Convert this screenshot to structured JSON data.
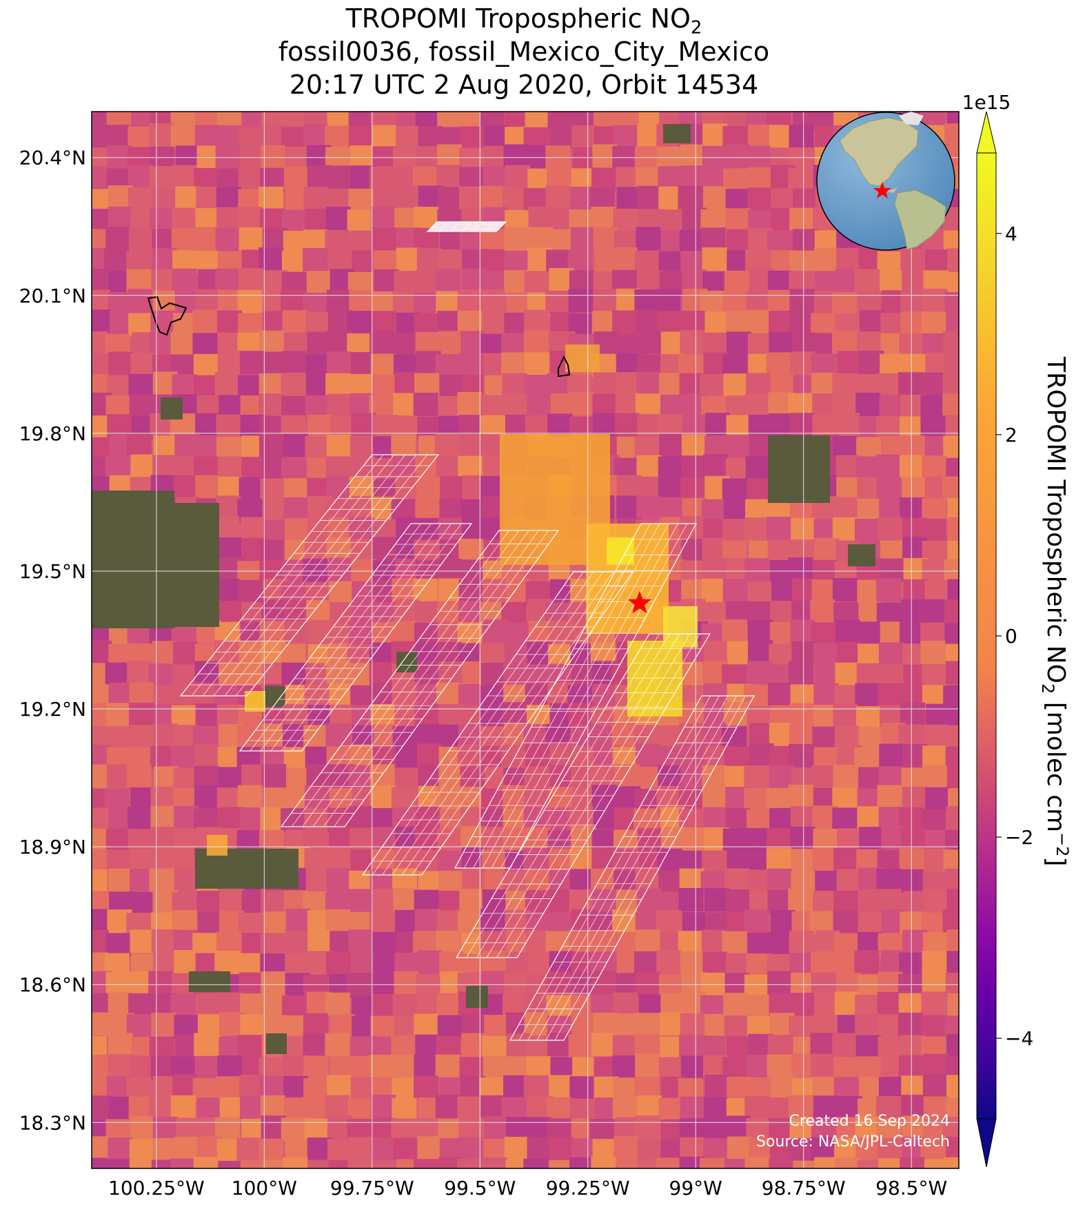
{
  "title": {
    "line1_prefix": "TROPOMI Tropospheric NO",
    "line1_sub": "2",
    "line2": "fossil0036, fossil_Mexico_City_Mexico",
    "line3": "20:17 UTC 2 Aug 2020, Orbit 14534"
  },
  "map": {
    "lon_range": [
      -100.4,
      -98.39
    ],
    "lat_range": [
      18.2,
      20.5
    ],
    "lon_ticks": [
      {
        "value": -100.25,
        "label": "100.25°W"
      },
      {
        "value": -100.0,
        "label": "100°W"
      },
      {
        "value": -99.75,
        "label": "99.75°W"
      },
      {
        "value": -99.5,
        "label": "99.5°W"
      },
      {
        "value": -99.25,
        "label": "99.25°W"
      },
      {
        "value": -99.0,
        "label": "99°W"
      },
      {
        "value": -98.75,
        "label": "98.75°W"
      },
      {
        "value": -98.5,
        "label": "98.5°W"
      }
    ],
    "lat_ticks": [
      {
        "value": 20.4,
        "label": "20.4°N"
      },
      {
        "value": 20.1,
        "label": "20.1°N"
      },
      {
        "value": 19.8,
        "label": "19.8°N"
      },
      {
        "value": 19.5,
        "label": "19.5°N"
      },
      {
        "value": 19.2,
        "label": "19.2°N"
      },
      {
        "value": 18.9,
        "label": "18.9°N"
      },
      {
        "value": 18.6,
        "label": "18.6°N"
      },
      {
        "value": 18.3,
        "label": "18.3°N"
      }
    ],
    "gridlines": true,
    "target_marker": {
      "lon": -99.13,
      "lat": 19.43,
      "color": "#ff0000",
      "symbol": "star"
    },
    "credit": [
      "Created 16 Sep 2024",
      "Source: NASA/JPL-Caltech"
    ]
  },
  "colorbar": {
    "colormap": "plasma",
    "vmin": -4.8,
    "vmax": 4.8,
    "extend": "both",
    "exponent_label": "1e15",
    "ticks": [
      {
        "value": -4,
        "label": "−4"
      },
      {
        "value": -2,
        "label": "−2"
      },
      {
        "value": 0,
        "label": "0"
      },
      {
        "value": 2,
        "label": "2"
      },
      {
        "value": 4,
        "label": "4"
      }
    ],
    "label_prefix": "TROPOMI Tropospheric NO",
    "label_sub": "2",
    "label_mid": " [molec cm",
    "label_sup": "−2",
    "label_suffix": "]"
  },
  "globe_inset": {
    "ocean_color": "#6a9ec9",
    "land_color": "#c9c49a",
    "marker_color": "#ff0000"
  },
  "colors": {
    "gridline": "#e6e6e6",
    "target_glint_outline": "#ffffff"
  }
}
